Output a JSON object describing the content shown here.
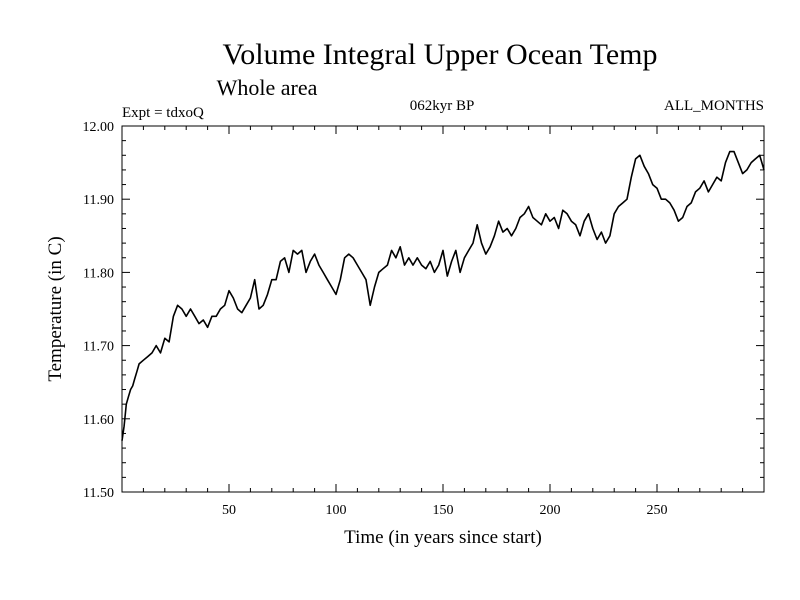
{
  "chart_data": {
    "type": "line",
    "title": "Volume Integral Upper Ocean Temp",
    "subtitle": "Whole area",
    "header_left": "Expt = tdxoQ",
    "header_center": "062kyr BP",
    "header_right": "ALL_MONTHS",
    "xlabel": "Time (in years since start)",
    "ylabel": "Temperature (in C)",
    "xlim": [
      0,
      300
    ],
    "ylim": [
      11.5,
      12.0
    ],
    "x_ticks": [
      50,
      100,
      150,
      200,
      250
    ],
    "x_tick_labels": [
      "50",
      "100",
      "150",
      "200",
      "250"
    ],
    "y_ticks": [
      11.5,
      11.6,
      11.7,
      11.8,
      11.9,
      12.0
    ],
    "y_tick_labels": [
      "11.50",
      "11.60",
      "11.70",
      "11.80",
      "11.90",
      "12.00"
    ],
    "grid": false,
    "series": [
      {
        "color": "#000000",
        "x": [
          0,
          1,
          2,
          3,
          4,
          5,
          6,
          7,
          8,
          10,
          12,
          14,
          16,
          18,
          20,
          22,
          24,
          26,
          28,
          30,
          32,
          34,
          36,
          38,
          40,
          42,
          44,
          46,
          48,
          50,
          52,
          54,
          56,
          58,
          60,
          62,
          64,
          66,
          68,
          70,
          72,
          74,
          76,
          78,
          80,
          82,
          84,
          86,
          88,
          90,
          92,
          94,
          96,
          98,
          100,
          102,
          104,
          106,
          108,
          110,
          112,
          114,
          116,
          118,
          120,
          122,
          124,
          126,
          128,
          130,
          132,
          134,
          136,
          138,
          140,
          142,
          144,
          146,
          148,
          150,
          152,
          154,
          156,
          158,
          160,
          162,
          164,
          166,
          168,
          170,
          172,
          174,
          176,
          178,
          180,
          182,
          184,
          186,
          188,
          190,
          192,
          194,
          196,
          198,
          200,
          202,
          204,
          206,
          208,
          210,
          212,
          214,
          216,
          218,
          220,
          222,
          224,
          226,
          228,
          230,
          232,
          234,
          236,
          238,
          240,
          242,
          244,
          246,
          248,
          250,
          252,
          254,
          256,
          258,
          260,
          262,
          264,
          266,
          268,
          270,
          272,
          274,
          276,
          278,
          280,
          282,
          284,
          286,
          288,
          290,
          292,
          294,
          296,
          298,
          300
        ],
        "y": [
          11.57,
          11.59,
          11.62,
          11.63,
          11.64,
          11.645,
          11.655,
          11.665,
          11.675,
          11.68,
          11.685,
          11.69,
          11.7,
          11.69,
          11.71,
          11.705,
          11.74,
          11.755,
          11.75,
          11.74,
          11.75,
          11.74,
          11.73,
          11.735,
          11.725,
          11.74,
          11.74,
          11.75,
          11.755,
          11.775,
          11.765,
          11.75,
          11.745,
          11.755,
          11.765,
          11.79,
          11.75,
          11.755,
          11.77,
          11.79,
          11.79,
          11.815,
          11.82,
          11.8,
          11.83,
          11.825,
          11.83,
          11.8,
          11.815,
          11.825,
          11.81,
          11.8,
          11.79,
          11.78,
          11.77,
          11.79,
          11.82,
          11.825,
          11.82,
          11.81,
          11.8,
          11.79,
          11.755,
          11.78,
          11.8,
          11.805,
          11.81,
          11.83,
          11.82,
          11.835,
          11.81,
          11.82,
          11.81,
          11.82,
          11.81,
          11.805,
          11.815,
          11.8,
          11.81,
          11.83,
          11.795,
          11.815,
          11.83,
          11.8,
          11.82,
          11.83,
          11.84,
          11.865,
          11.84,
          11.825,
          11.835,
          11.85,
          11.87,
          11.855,
          11.86,
          11.85,
          11.86,
          11.875,
          11.88,
          11.89,
          11.875,
          11.87,
          11.865,
          11.88,
          11.87,
          11.875,
          11.86,
          11.885,
          11.88,
          11.87,
          11.865,
          11.85,
          11.87,
          11.88,
          11.86,
          11.845,
          11.855,
          11.84,
          11.85,
          11.88,
          11.89,
          11.895,
          11.9,
          11.93,
          11.955,
          11.96,
          11.945,
          11.935,
          11.92,
          11.915,
          11.9,
          11.9,
          11.895,
          11.885,
          11.87,
          11.875,
          11.89,
          11.895,
          11.91,
          11.915,
          11.925,
          11.91,
          11.92,
          11.93,
          11.925,
          11.95,
          11.965,
          11.965,
          11.95,
          11.935,
          11.94,
          11.95,
          11.955,
          11.96,
          11.94
        ]
      }
    ]
  }
}
